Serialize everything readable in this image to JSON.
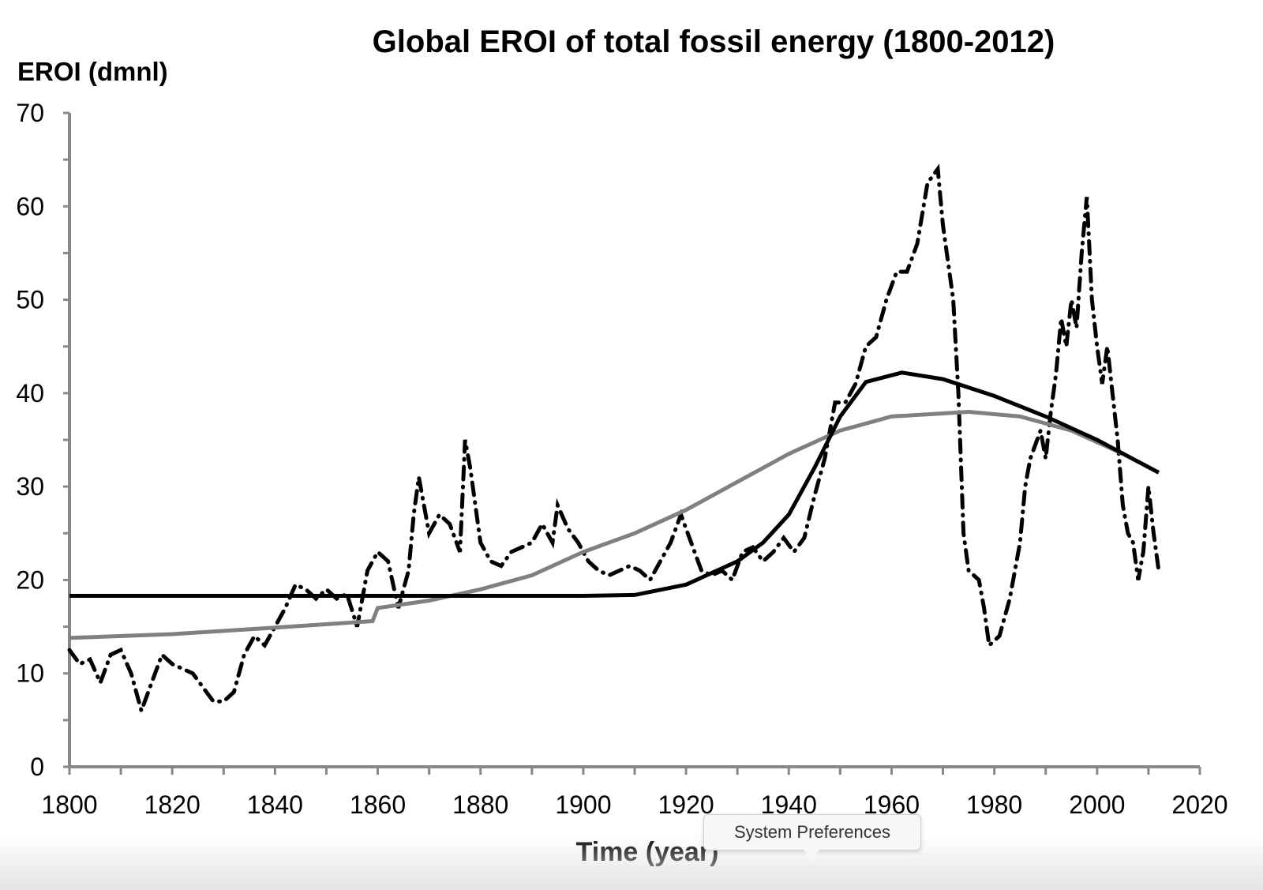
{
  "chart_data": {
    "type": "line",
    "title": "Global EROI of total fossil energy (1800-2012)",
    "ylabel": "EROI (dmnl)",
    "xlabel": "Time (year)",
    "xlim": [
      1800,
      2020
    ],
    "ylim": [
      0,
      70
    ],
    "xticks": [
      1800,
      1820,
      1840,
      1860,
      1880,
      1900,
      1920,
      1940,
      1960,
      1980,
      2000,
      2020
    ],
    "yticks": [
      0,
      10,
      20,
      30,
      40,
      50,
      60,
      70
    ],
    "grid": false,
    "colors": {
      "dashdot": "#000000",
      "black_curve": "#000000",
      "gray_curve": "#808080",
      "axis": "#888888"
    },
    "series": [
      {
        "style": "dash-dot",
        "x": [
          1800,
          1802,
          1804,
          1806,
          1808,
          1810,
          1812,
          1814,
          1816,
          1818,
          1820,
          1822,
          1824,
          1826,
          1828,
          1830,
          1832,
          1834,
          1836,
          1838,
          1840,
          1842,
          1844,
          1846,
          1848,
          1850,
          1852,
          1854,
          1856,
          1858,
          1860,
          1862,
          1864,
          1866,
          1867,
          1868,
          1870,
          1872,
          1874,
          1876,
          1877,
          1878,
          1880,
          1882,
          1884,
          1886,
          1888,
          1890,
          1892,
          1894,
          1895,
          1897,
          1899,
          1901,
          1903,
          1905,
          1907,
          1909,
          1911,
          1913,
          1915,
          1917,
          1919,
          1921,
          1923,
          1925,
          1927,
          1929,
          1931,
          1933,
          1935,
          1937,
          1939,
          1941,
          1943,
          1945,
          1947,
          1949,
          1951,
          1953,
          1955,
          1957,
          1959,
          1961,
          1963,
          1965,
          1967,
          1969,
          1970,
          1972,
          1973,
          1974,
          1975,
          1977,
          1978,
          1979,
          1981,
          1983,
          1985,
          1986,
          1987,
          1989,
          1990,
          1991,
          1992,
          1993,
          1994,
          1995,
          1996,
          1997,
          1998,
          1999,
          2000,
          2001,
          2002,
          2003,
          2004,
          2005,
          2006,
          2007,
          2008,
          2009,
          2010,
          2011,
          2012
        ],
        "y": [
          12.5,
          11,
          11.5,
          9,
          12,
          12.5,
          10,
          6,
          9,
          12,
          11,
          10.5,
          10,
          8.5,
          7,
          7,
          8,
          12,
          14,
          13,
          15,
          17,
          19.5,
          19,
          18,
          19,
          18,
          18.5,
          15,
          21,
          23,
          22,
          17,
          21,
          27,
          31,
          25,
          27,
          26,
          23,
          35,
          32,
          24,
          22,
          21.5,
          23,
          23.5,
          24,
          26,
          24,
          28,
          25.5,
          24,
          22,
          21,
          20.5,
          21,
          21.5,
          21,
          20,
          22,
          24,
          27,
          24,
          21,
          20.5,
          21,
          20,
          23,
          23.5,
          22,
          23,
          24.5,
          23,
          24.5,
          29,
          33,
          39,
          39,
          41,
          45,
          46,
          50,
          53,
          53,
          56,
          62.5,
          64,
          58,
          50,
          40,
          25,
          21,
          20,
          17,
          13,
          14,
          18,
          24,
          30,
          33,
          36,
          33,
          38,
          42,
          48,
          45,
          50,
          47,
          55,
          61,
          50,
          45,
          41,
          45,
          40,
          35,
          28,
          25,
          24,
          20,
          23,
          30,
          25,
          21
        ]
      },
      {
        "style": "solid-black",
        "x": [
          1800,
          1850,
          1900,
          1910,
          1920,
          1930,
          1935,
          1940,
          1945,
          1950,
          1955,
          1962,
          1970,
          1980,
          1990,
          2000,
          2012
        ],
        "y": [
          18.3,
          18.3,
          18.3,
          18.4,
          19.5,
          22,
          24,
          27,
          32,
          37.5,
          41.2,
          42.2,
          41.5,
          39.7,
          37.5,
          35,
          31.5
        ]
      },
      {
        "style": "solid-gray",
        "x": [
          1800,
          1820,
          1840,
          1859,
          1860,
          1870,
          1880,
          1890,
          1900,
          1910,
          1920,
          1930,
          1940,
          1950,
          1960,
          1975,
          1985,
          1995,
          2005,
          2012
        ],
        "y": [
          13.8,
          14.2,
          14.9,
          15.6,
          17,
          17.8,
          19,
          20.5,
          23,
          25,
          27.5,
          30.5,
          33.5,
          36,
          37.5,
          38,
          37.5,
          36,
          33.5,
          31.5
        ]
      }
    ]
  },
  "tooltip": {
    "text": "System Preferences"
  }
}
